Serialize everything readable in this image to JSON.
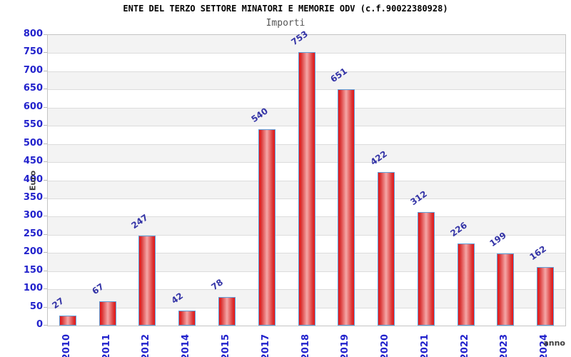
{
  "chart_data": {
    "type": "bar",
    "title": "ENTE DEL TERZO SETTORE MINATORI E MEMORIE ODV (c.f.90022380928)",
    "subtitle": "Importi",
    "xlabel": "anno",
    "ylabel": "Euro",
    "categories": [
      "2010",
      "2011",
      "2012",
      "2014",
      "2015",
      "2017",
      "2018",
      "2019",
      "2020",
      "2021",
      "2022",
      "2023",
      "2024"
    ],
    "values": [
      27,
      67,
      247,
      42,
      78,
      540,
      753,
      651,
      422,
      312,
      226,
      199,
      162
    ],
    "ylim": [
      0,
      800
    ],
    "ytick_step": 50,
    "grid": true,
    "legend": "none",
    "colors": {
      "bar_edge": "#f01313",
      "bar_mid": "#d93030",
      "bar_center": "#f5a7a7",
      "bar_border": "#5f9fd8",
      "tick_label": "#2222cc",
      "value_label": "#3333a6",
      "band_gray": "#f3f3f3",
      "gridline": "#dcdcdc",
      "title": "#000000",
      "subtitle": "#555555",
      "axis_label": "#3d3d3d"
    }
  }
}
